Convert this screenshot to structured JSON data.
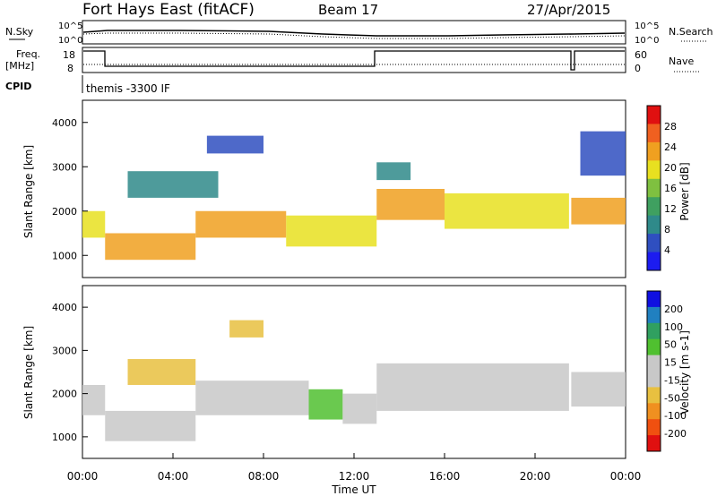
{
  "header": {
    "station": "Fort Hays East (fitACF)",
    "beam": "Beam 17",
    "date": "27/Apr/2015"
  },
  "noise_panel": {
    "left_label": "N.Sky",
    "right_label": "N.Search",
    "left_ticks": [
      "10^5",
      "10^0"
    ],
    "right_ticks": [
      "10^5",
      "10^0"
    ]
  },
  "freq_panel": {
    "left_label_line1": "Freq.",
    "left_label_line2": "[MHz]",
    "right_label": "Nave",
    "left_ticks": [
      "18",
      "8"
    ],
    "right_ticks": [
      "60",
      "0"
    ]
  },
  "cpid": {
    "label": "CPID",
    "text": "themis -3300 IF"
  },
  "colors": {
    "power_scale": [
      "#1c1cf0",
      "#2f4fc0",
      "#2f8a8a",
      "#3fa060",
      "#7fc040",
      "#e8e020",
      "#f0a020",
      "#f06020",
      "#e01010"
    ],
    "velocity_scale": [
      "#e01010",
      "#f05010",
      "#f09020",
      "#e8c040",
      "#c8c8c8",
      "#c8c8c8",
      "#50c030",
      "#30a060",
      "#2080c0",
      "#1010e0"
    ]
  },
  "chart_data": [
    {
      "type": "heatmap",
      "name": "power",
      "ylabel": "Slant Range [km]",
      "yticks": [
        "1000",
        "2000",
        "3000",
        "4000"
      ],
      "ylim": [
        500,
        4500
      ],
      "xlim": [
        0,
        24
      ],
      "colorbar_label": "Power [dB]",
      "colorbar_ticks": [
        "4",
        "8",
        "12",
        "16",
        "20",
        "24",
        "28"
      ],
      "colorbar_range": [
        0,
        32
      ],
      "bands": [
        {
          "t0": 0.0,
          "t1": 1.0,
          "r0": 1400,
          "r1": 2000,
          "value": 18
        },
        {
          "t0": 1.0,
          "t1": 5.0,
          "r0": 900,
          "r1": 1500,
          "value": 24
        },
        {
          "t0": 5.0,
          "t1": 9.0,
          "r0": 1400,
          "r1": 2000,
          "value": 22
        },
        {
          "t0": 9.0,
          "t1": 13.0,
          "r0": 1200,
          "r1": 1900,
          "value": 20
        },
        {
          "t0": 13.0,
          "t1": 16.0,
          "r0": 1800,
          "r1": 2500,
          "value": 24
        },
        {
          "t0": 16.0,
          "t1": 21.5,
          "r0": 1600,
          "r1": 2400,
          "value": 20
        },
        {
          "t0": 21.6,
          "t1": 24.0,
          "r0": 1700,
          "r1": 2300,
          "value": 22
        },
        {
          "t0": 2.0,
          "t1": 6.0,
          "r0": 2300,
          "r1": 2900,
          "value": 10
        },
        {
          "t0": 5.5,
          "t1": 8.0,
          "r0": 3300,
          "r1": 3700,
          "value": 6
        },
        {
          "t0": 13.0,
          "t1": 14.5,
          "r0": 2700,
          "r1": 3100,
          "value": 8
        },
        {
          "t0": 22.0,
          "t1": 24.0,
          "r0": 2800,
          "r1": 3800,
          "value": 6
        }
      ]
    },
    {
      "type": "heatmap",
      "name": "velocity",
      "ylabel": "Slant Range [km]",
      "yticks": [
        "1000",
        "2000",
        "3000",
        "4000"
      ],
      "ylim": [
        500,
        4500
      ],
      "xlim": [
        0,
        24
      ],
      "xticks": [
        "00:00",
        "04:00",
        "08:00",
        "12:00",
        "16:00",
        "20:00",
        "00:00"
      ],
      "xlabel": "Time UT",
      "colorbar_label": "Velocity [m s-1]",
      "colorbar_ticks": [
        "-200",
        "-100",
        "-50",
        "-15",
        "15",
        "50",
        "100",
        "200"
      ],
      "bands": [
        {
          "t0": 0.0,
          "t1": 1.0,
          "r0": 1500,
          "r1": 2200,
          "value": 0
        },
        {
          "t0": 1.0,
          "t1": 5.0,
          "r0": 900,
          "r1": 1600,
          "value": 0
        },
        {
          "t0": 2.0,
          "t1": 5.0,
          "r0": 2200,
          "r1": 2800,
          "value": -40
        },
        {
          "t0": 5.0,
          "t1": 10.0,
          "r0": 1500,
          "r1": 2300,
          "value": 0
        },
        {
          "t0": 10.0,
          "t1": 11.5,
          "r0": 1400,
          "r1": 2100,
          "value": 40
        },
        {
          "t0": 11.5,
          "t1": 13.0,
          "r0": 1300,
          "r1": 2000,
          "value": 0
        },
        {
          "t0": 13.0,
          "t1": 21.5,
          "r0": 1600,
          "r1": 2700,
          "value": 0
        },
        {
          "t0": 21.6,
          "t1": 24.0,
          "r0": 1700,
          "r1": 2500,
          "value": 0
        },
        {
          "t0": 6.5,
          "t1": 8.0,
          "r0": 3300,
          "r1": 3700,
          "value": -40
        }
      ]
    }
  ]
}
